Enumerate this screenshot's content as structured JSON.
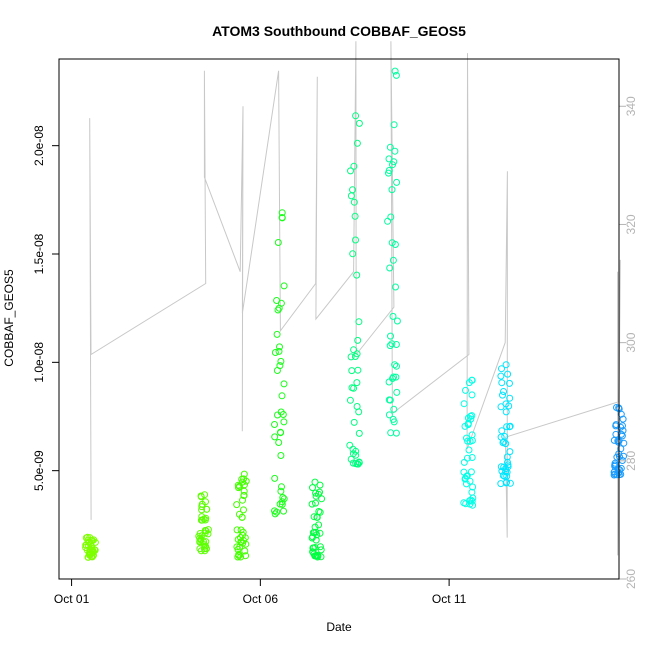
{
  "chart_data": {
    "type": "scatter",
    "title": "ATOM3 Southbound COBBAF_GEOS5",
    "xlabel": "Date",
    "ylabel": "COBBAF_GEOS5",
    "x_ticks": [
      "Oct 01",
      "Oct 06",
      "Oct 11"
    ],
    "y_ticks": [
      "5.0e-09",
      "1.0e-08",
      "1.5e-08",
      "2.0e-08"
    ],
    "y2_ticks": [
      "260",
      "280",
      "300",
      "320",
      "340"
    ],
    "xlim": [
      "2016-09-30T16:00",
      "2016-10-15T12:00"
    ],
    "ylim": [
      0.0,
      2.4e-08
    ],
    "y2lim": [
      260,
      348
    ],
    "grid": false,
    "legend": "none",
    "colors": {
      "right_axis": "#b4b4b4",
      "gray_series": "#c8c8c8"
    },
    "series": [
      {
        "kind": "points",
        "marker": "open-circle",
        "color_ramp": [
          "#7fff00",
          "#00ff00",
          "#00ff80",
          "#00ffff",
          "#0080ff"
        ],
        "clusters": [
          {
            "date": "2016-10-01",
            "color": "#7fff00",
            "y_range": [
              1e-09,
              2e-09
            ]
          },
          {
            "date": "2016-10-04",
            "color": "#5cff00",
            "y_range": [
              1.3e-09,
              3.9e-09
            ]
          },
          {
            "date": "2016-10-05",
            "color": "#44ff00",
            "y_range": [
              1e-09,
              4.9e-09
            ]
          },
          {
            "date": "2016-10-06",
            "color": "#1aff1a",
            "y_range": [
              3e-09,
              1.71e-08
            ]
          },
          {
            "date": "2016-10-07",
            "color": "#00ff40",
            "y_range": [
              1e-09,
              4.7e-09
            ]
          },
          {
            "date": "2016-10-08",
            "color": "#00ff80",
            "y_range": [
              5.3e-09,
              2.2e-08
            ]
          },
          {
            "date": "2016-10-09",
            "color": "#00ff9f",
            "y_range": [
              6.7e-09,
              2.35e-08
            ]
          },
          {
            "date": "2016-10-11",
            "color": "#00ffe6",
            "y_range": [
              3.4e-09,
              9.5e-09
            ]
          },
          {
            "date": "2016-10-12",
            "color": "#00e6ff",
            "y_range": [
              4.4e-09,
              1.05e-08
            ]
          },
          {
            "date": "2016-10-15",
            "color": "#1a9cff",
            "y_range": [
              4.8e-09,
              8.5e-09
            ]
          }
        ]
      },
      {
        "kind": "line",
        "axis": "right",
        "color": "#c8c8c8",
        "path": [
          [
            "2016-10-01",
            270
          ],
          [
            "2016-10-01",
            338
          ],
          [
            "2016-10-01",
            298
          ],
          [
            "2016-10-04",
            310
          ],
          [
            "2016-10-04",
            346
          ],
          [
            "2016-10-04",
            328
          ],
          [
            "2016-10-05",
            312
          ],
          [
            "2016-10-05",
            340
          ],
          [
            "2016-10-05",
            285
          ],
          [
            "2016-10-05",
            336
          ],
          [
            "2016-10-05",
            305
          ],
          [
            "2016-10-06",
            346
          ],
          [
            "2016-10-06",
            302
          ],
          [
            "2016-10-07",
            310
          ],
          [
            "2016-10-07",
            345
          ],
          [
            "2016-10-07",
            304
          ],
          [
            "2016-10-08",
            312
          ],
          [
            "2016-10-08",
            351
          ],
          [
            "2016-10-08",
            298
          ],
          [
            "2016-10-09",
            306
          ],
          [
            "2016-10-09",
            351
          ],
          [
            "2016-10-09",
            288
          ],
          [
            "2016-10-11",
            298
          ],
          [
            "2016-10-11",
            349
          ],
          [
            "2016-10-11",
            282
          ],
          [
            "2016-10-12",
            300
          ],
          [
            "2016-10-12",
            329
          ],
          [
            "2016-10-12",
            267
          ],
          [
            "2016-10-12",
            284
          ],
          [
            "2016-10-15",
            290
          ],
          [
            "2016-10-15",
            314
          ],
          [
            "2016-10-15",
            264
          ],
          [
            "2016-10-15",
            312
          ]
        ]
      }
    ]
  }
}
